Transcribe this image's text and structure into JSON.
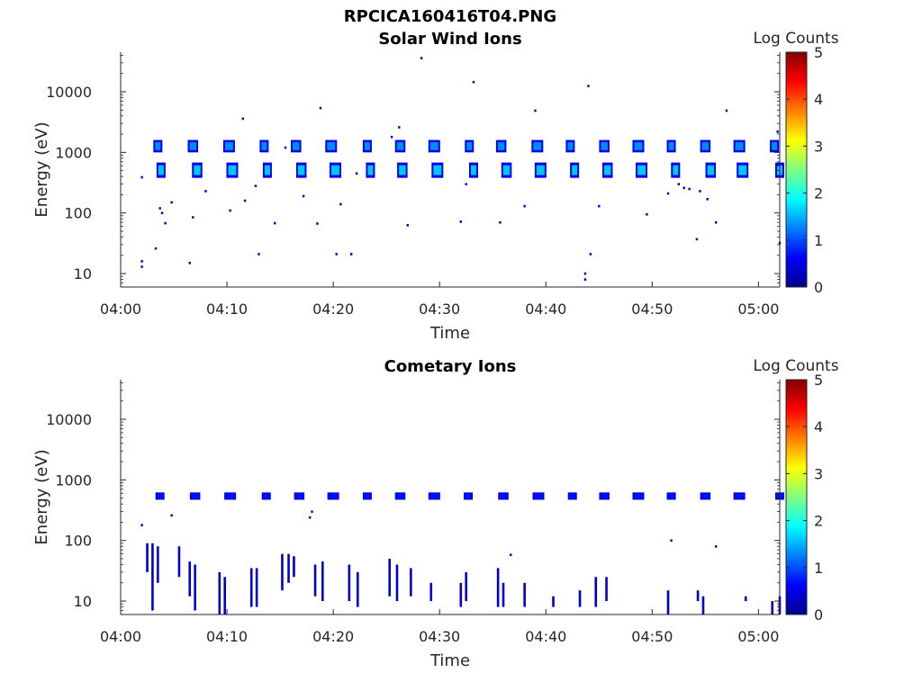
{
  "figure_title": "RPCICA160416T04.PNG",
  "colormap": [
    "#00008f",
    "#0000ff",
    "#00ffff",
    "#ffff00",
    "#ff0000",
    "#800000"
  ],
  "chart_data": [
    {
      "type": "heatmap",
      "title": "Solar Wind Ions",
      "xlabel": "Time",
      "ylabel": "Energy (eV)",
      "yscale": "log",
      "xlim": [
        "04:00",
        "05:02"
      ],
      "ylim": [
        6,
        45000
      ],
      "x_ticks": [
        "04:00",
        "04:10",
        "04:20",
        "04:30",
        "04:40",
        "04:50",
        "05:00"
      ],
      "y_ticks": [
        10,
        100,
        1000,
        10000
      ],
      "y_tick_labels": [
        "10",
        "100",
        "1000",
        "10000"
      ],
      "colorbar": {
        "label": "Log Counts",
        "min": 0,
        "max": 5,
        "ticks": [
          "0",
          "1",
          "2",
          "3",
          "4",
          "5"
        ]
      },
      "bands": [
        {
          "energy_min": 1000,
          "energy_max": 1600,
          "peak_log_counts": 1.3,
          "burst_times": [
            "04:03.5",
            "04:06.8",
            "04:10.2",
            "04:13.5",
            "04:16.5",
            "04:19.8",
            "04:23.2",
            "04:26.3",
            "04:29.5",
            "04:32.8",
            "04:35.8",
            "04:39.2",
            "04:42.3",
            "04:45.5",
            "04:48.7",
            "04:51.8",
            "04:55.0",
            "04:58.2",
            "05:01.5"
          ]
        },
        {
          "energy_min": 380,
          "energy_max": 680,
          "peak_log_counts": 1.6,
          "burst_times": [
            "04:03.8",
            "04:07.2",
            "04:10.5",
            "04:13.8",
            "04:17.0",
            "04:20.2",
            "04:23.5",
            "04:26.5",
            "04:29.8",
            "04:33.2",
            "04:36.3",
            "04:39.5",
            "04:42.7",
            "04:45.8",
            "04:49.0",
            "04:52.2",
            "04:55.5",
            "04:58.5",
            "05:02.0"
          ]
        }
      ],
      "points": [
        {
          "t": "04:02.0",
          "e": 16,
          "v": 0.3
        },
        {
          "t": "04:02.0",
          "e": 13,
          "v": 0.3
        },
        {
          "t": "04:03.3",
          "e": 26,
          "v": 0.3
        },
        {
          "t": "04:06.5",
          "e": 15,
          "v": 0.3
        },
        {
          "t": "04:13.0",
          "e": 21,
          "v": 0.3
        },
        {
          "t": "04:20.3",
          "e": 21,
          "v": 0.3
        },
        {
          "t": "04:21.7",
          "e": 21,
          "v": 0.3
        },
        {
          "t": "04:43.7",
          "e": 8,
          "v": 0.3
        },
        {
          "t": "04:43.7",
          "e": 10,
          "v": 0.3
        },
        {
          "t": "04:44.2",
          "e": 21,
          "v": 0.3
        },
        {
          "t": "04:54.2",
          "e": 37,
          "v": 0.3
        },
        {
          "t": "05:02.0",
          "e": 32,
          "v": 0.3
        },
        {
          "t": "04:02.0",
          "e": 390,
          "v": 0.3
        },
        {
          "t": "04:03.7",
          "e": 120,
          "v": 0.3
        },
        {
          "t": "04:03.9",
          "e": 100,
          "v": 0.3
        },
        {
          "t": "04:04.2",
          "e": 68,
          "v": 0.3
        },
        {
          "t": "04:04.8",
          "e": 150,
          "v": 0.3
        },
        {
          "t": "04:06.8",
          "e": 85,
          "v": 0.3
        },
        {
          "t": "04:08.0",
          "e": 230,
          "v": 0.3
        },
        {
          "t": "04:10.3",
          "e": 110,
          "v": 0.3
        },
        {
          "t": "04:11.5",
          "e": 3600,
          "v": 0.3
        },
        {
          "t": "04:11.7",
          "e": 160,
          "v": 0.3
        },
        {
          "t": "04:12.7",
          "e": 280,
          "v": 0.3
        },
        {
          "t": "04:14.5",
          "e": 68,
          "v": 0.3
        },
        {
          "t": "04:15.5",
          "e": 1200,
          "v": 0.3
        },
        {
          "t": "04:17.2",
          "e": 190,
          "v": 0.3
        },
        {
          "t": "04:18.5",
          "e": 67,
          "v": 0.3
        },
        {
          "t": "04:18.8",
          "e": 5400,
          "v": 0.3
        },
        {
          "t": "04:20.7",
          "e": 140,
          "v": 0.3
        },
        {
          "t": "04:22.2",
          "e": 450,
          "v": 0.3
        },
        {
          "t": "04:25.5",
          "e": 1800,
          "v": 0.3
        },
        {
          "t": "04:26.2",
          "e": 2600,
          "v": 0.3
        },
        {
          "t": "04:27.0",
          "e": 63,
          "v": 0.3
        },
        {
          "t": "04:28.3",
          "e": 36000,
          "v": 0.3
        },
        {
          "t": "04:32.0",
          "e": 72,
          "v": 0.3
        },
        {
          "t": "04:32.5",
          "e": 300,
          "v": 0.3
        },
        {
          "t": "04:33.2",
          "e": 14500,
          "v": 0.3
        },
        {
          "t": "04:35.7",
          "e": 70,
          "v": 0.3
        },
        {
          "t": "04:38.0",
          "e": 130,
          "v": 0.3
        },
        {
          "t": "04:39.0",
          "e": 4900,
          "v": 0.3
        },
        {
          "t": "04:44.0",
          "e": 12500,
          "v": 0.3
        },
        {
          "t": "04:45.0",
          "e": 130,
          "v": 0.3
        },
        {
          "t": "04:49.5",
          "e": 95,
          "v": 0.3
        },
        {
          "t": "04:51.5",
          "e": 210,
          "v": 0.3
        },
        {
          "t": "04:52.5",
          "e": 300,
          "v": 0.3
        },
        {
          "t": "04:53.0",
          "e": 260,
          "v": 0.3
        },
        {
          "t": "04:53.5",
          "e": 250,
          "v": 0.3
        },
        {
          "t": "04:54.5",
          "e": 230,
          "v": 0.3
        },
        {
          "t": "04:55.2",
          "e": 170,
          "v": 0.3
        },
        {
          "t": "04:56.0",
          "e": 70,
          "v": 0.3
        },
        {
          "t": "04:57.0",
          "e": 4900,
          "v": 0.3
        },
        {
          "t": "05:01.8",
          "e": 2200,
          "v": 0.3
        }
      ]
    },
    {
      "type": "heatmap",
      "title": "Cometary Ions",
      "xlabel": "Time",
      "ylabel": "Energy (eV)",
      "yscale": "log",
      "xlim": [
        "04:00",
        "05:02"
      ],
      "ylim": [
        6,
        45000
      ],
      "x_ticks": [
        "04:00",
        "04:10",
        "04:20",
        "04:30",
        "04:40",
        "04:50",
        "05:00"
      ],
      "y_ticks": [
        10,
        100,
        1000,
        10000
      ],
      "y_tick_labels": [
        "10",
        "100",
        "1000",
        "10000"
      ],
      "colorbar": {
        "label": "Log Counts",
        "min": 0,
        "max": 5,
        "ticks": [
          "0",
          "1",
          "2",
          "3",
          "4",
          "5"
        ]
      },
      "bands": [
        {
          "energy_min": 470,
          "energy_max": 620,
          "peak_log_counts": 0.7,
          "burst_times": [
            "04:03.7",
            "04:07.0",
            "04:10.3",
            "04:13.7",
            "04:16.8",
            "04:20.0",
            "04:23.2",
            "04:26.3",
            "04:29.5",
            "04:32.7",
            "04:36.0",
            "04:39.3",
            "04:42.5",
            "04:45.5",
            "04:48.7",
            "04:51.8",
            "04:55.0",
            "04:58.2",
            "05:02.0"
          ]
        }
      ],
      "points": [
        {
          "t": "04:02.0",
          "e": 180,
          "v": 0.4
        },
        {
          "t": "04:04.8",
          "e": 260,
          "v": 0.3
        },
        {
          "t": "04:17.8",
          "e": 240,
          "v": 0.3
        },
        {
          "t": "04:18.0",
          "e": 300,
          "v": 0.3
        },
        {
          "t": "04:51.8",
          "e": 100,
          "v": 0.3
        },
        {
          "t": "04:56.0",
          "e": 80,
          "v": 0.3
        },
        {
          "t": "04:36.7",
          "e": 58,
          "v": 0.3
        }
      ],
      "streaks": [
        {
          "t": "04:02.5",
          "e_min": 30,
          "e_max": 90
        },
        {
          "t": "04:03.0",
          "e_min": 7,
          "e_max": 90
        },
        {
          "t": "04:03.5",
          "e_min": 20,
          "e_max": 80
        },
        {
          "t": "04:05.5",
          "e_min": 25,
          "e_max": 80
        },
        {
          "t": "04:06.5",
          "e_min": 12,
          "e_max": 45
        },
        {
          "t": "04:07.0",
          "e_min": 7,
          "e_max": 40
        },
        {
          "t": "04:09.3",
          "e_min": 6,
          "e_max": 30
        },
        {
          "t": "04:09.8",
          "e_min": 6,
          "e_max": 25
        },
        {
          "t": "04:12.3",
          "e_min": 8,
          "e_max": 35
        },
        {
          "t": "04:12.8",
          "e_min": 8,
          "e_max": 35
        },
        {
          "t": "04:15.2",
          "e_min": 15,
          "e_max": 60
        },
        {
          "t": "04:15.8",
          "e_min": 20,
          "e_max": 60
        },
        {
          "t": "04:16.3",
          "e_min": 25,
          "e_max": 55
        },
        {
          "t": "04:18.3",
          "e_min": 12,
          "e_max": 40
        },
        {
          "t": "04:19.0",
          "e_min": 10,
          "e_max": 45
        },
        {
          "t": "04:21.5",
          "e_min": 10,
          "e_max": 40
        },
        {
          "t": "04:22.3",
          "e_min": 8,
          "e_max": 30
        },
        {
          "t": "04:25.3",
          "e_min": 12,
          "e_max": 50
        },
        {
          "t": "04:26.0",
          "e_min": 10,
          "e_max": 40
        },
        {
          "t": "04:27.3",
          "e_min": 12,
          "e_max": 35
        },
        {
          "t": "04:29.2",
          "e_min": 10,
          "e_max": 20
        },
        {
          "t": "04:32.0",
          "e_min": 8,
          "e_max": 20
        },
        {
          "t": "04:32.5",
          "e_min": 10,
          "e_max": 30
        },
        {
          "t": "04:35.5",
          "e_min": 8,
          "e_max": 35
        },
        {
          "t": "04:36.0",
          "e_min": 8,
          "e_max": 20
        },
        {
          "t": "04:38.0",
          "e_min": 8,
          "e_max": 20
        },
        {
          "t": "04:40.7",
          "e_min": 8,
          "e_max": 12
        },
        {
          "t": "04:43.2",
          "e_min": 8,
          "e_max": 15
        },
        {
          "t": "04:44.7",
          "e_min": 8,
          "e_max": 25
        },
        {
          "t": "04:45.7",
          "e_min": 10,
          "e_max": 25
        },
        {
          "t": "04:51.5",
          "e_min": 6,
          "e_max": 15
        },
        {
          "t": "04:54.3",
          "e_min": 10,
          "e_max": 15
        },
        {
          "t": "04:54.8",
          "e_min": 6,
          "e_max": 12
        },
        {
          "t": "04:58.8",
          "e_min": 10,
          "e_max": 12
        },
        {
          "t": "05:01.3",
          "e_min": 6,
          "e_max": 10
        },
        {
          "t": "05:02.0",
          "e_min": 6,
          "e_max": 12
        }
      ]
    }
  ]
}
